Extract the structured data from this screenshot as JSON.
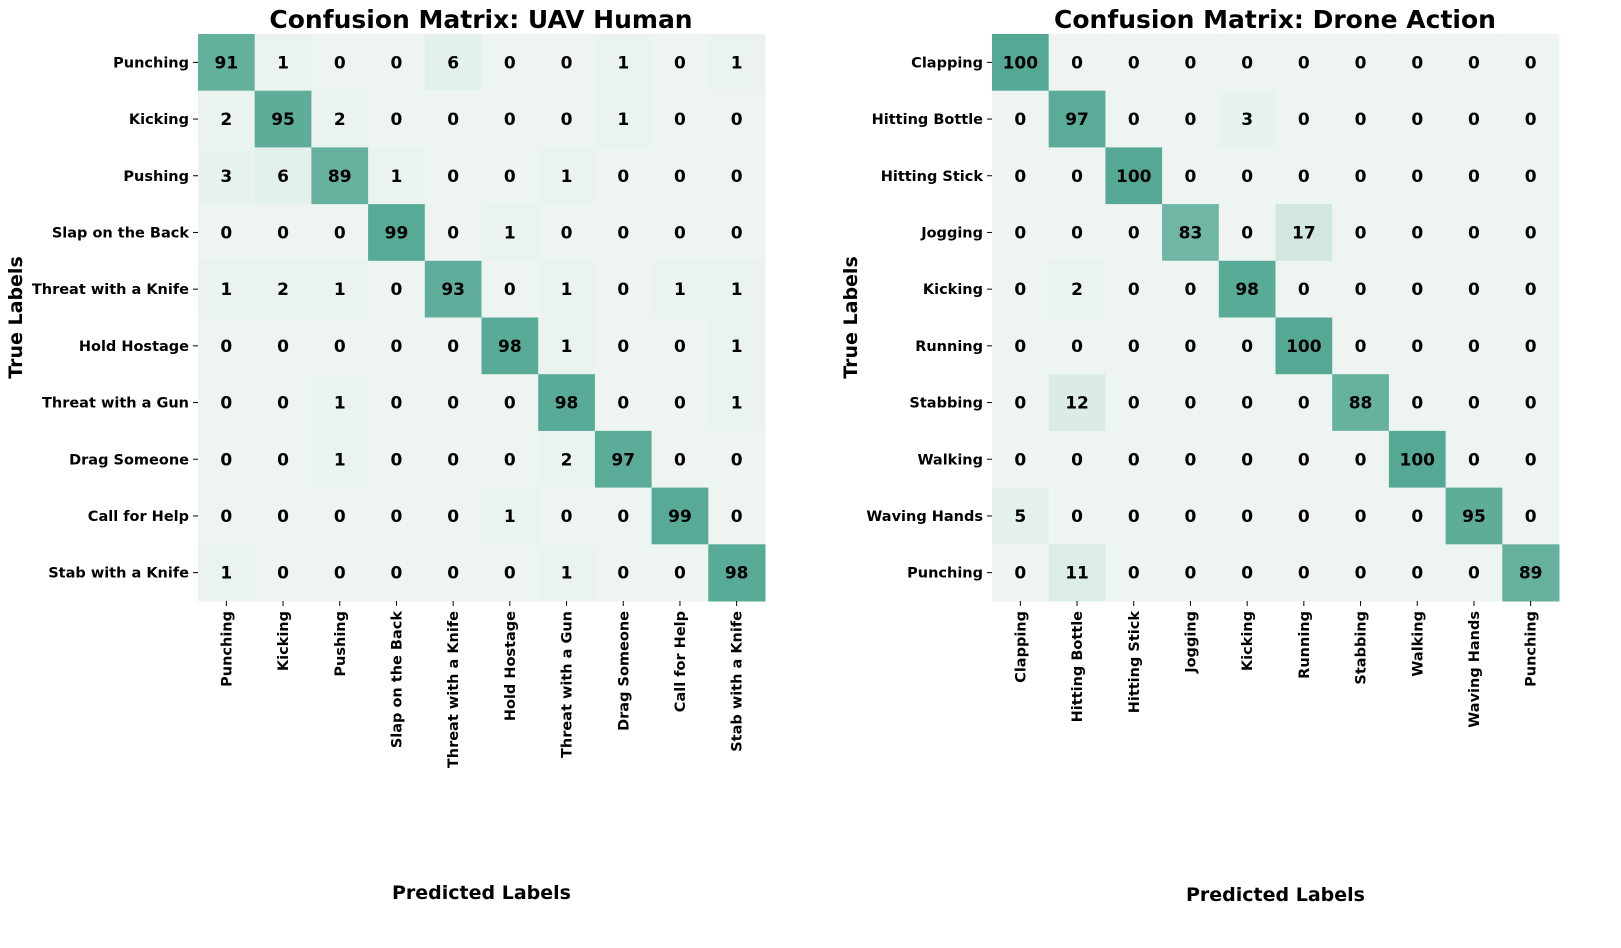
{
  "chart_data": [
    {
      "type": "heatmap",
      "title": "Confusion Matrix: UAV Human",
      "xlabel": "Predicted Labels",
      "ylabel": "True Labels",
      "labels": [
        "Punching",
        "Kicking",
        "Pushing",
        "Slap on the Back",
        "Threat with a Knife",
        "Hold Hostage",
        "Threat with a Gun",
        "Drag Someone",
        "Call for Help",
        "Stab with a Knife"
      ],
      "values": [
        [
          91,
          1,
          0,
          0,
          6,
          0,
          0,
          1,
          0,
          1
        ],
        [
          2,
          95,
          2,
          0,
          0,
          0,
          0,
          1,
          0,
          0
        ],
        [
          3,
          6,
          89,
          1,
          0,
          0,
          1,
          0,
          0,
          0
        ],
        [
          0,
          0,
          0,
          99,
          0,
          1,
          0,
          0,
          0,
          0
        ],
        [
          1,
          2,
          1,
          0,
          93,
          0,
          1,
          0,
          1,
          1
        ],
        [
          0,
          0,
          0,
          0,
          0,
          98,
          1,
          0,
          0,
          1
        ],
        [
          0,
          0,
          1,
          0,
          0,
          0,
          98,
          0,
          0,
          1
        ],
        [
          0,
          0,
          1,
          0,
          0,
          0,
          2,
          97,
          0,
          0
        ],
        [
          0,
          0,
          0,
          0,
          0,
          1,
          0,
          0,
          99,
          0
        ],
        [
          1,
          0,
          0,
          0,
          0,
          0,
          1,
          0,
          0,
          98
        ]
      ],
      "color_low": "#edf4f1",
      "color_high": "#55a994",
      "vmin": 0,
      "vmax": 100
    },
    {
      "type": "heatmap",
      "title": "Confusion Matrix: Drone Action",
      "xlabel": "Predicted Labels",
      "ylabel": "True Labels",
      "labels": [
        "Clapping",
        "Hitting Bottle",
        "Hitting Stick",
        "Jogging",
        "Kicking",
        "Running",
        "Stabbing",
        "Walking",
        "Waving Hands",
        "Punching"
      ],
      "values": [
        [
          100,
          0,
          0,
          0,
          0,
          0,
          0,
          0,
          0,
          0
        ],
        [
          0,
          97,
          0,
          0,
          3,
          0,
          0,
          0,
          0,
          0
        ],
        [
          0,
          0,
          100,
          0,
          0,
          0,
          0,
          0,
          0,
          0
        ],
        [
          0,
          0,
          0,
          83,
          0,
          17,
          0,
          0,
          0,
          0
        ],
        [
          0,
          2,
          0,
          0,
          98,
          0,
          0,
          0,
          0,
          0
        ],
        [
          0,
          0,
          0,
          0,
          0,
          100,
          0,
          0,
          0,
          0
        ],
        [
          0,
          12,
          0,
          0,
          0,
          0,
          88,
          0,
          0,
          0
        ],
        [
          0,
          0,
          0,
          0,
          0,
          0,
          0,
          100,
          0,
          0
        ],
        [
          5,
          0,
          0,
          0,
          0,
          0,
          0,
          0,
          95,
          0
        ],
        [
          0,
          11,
          0,
          0,
          0,
          0,
          0,
          0,
          0,
          89
        ]
      ],
      "color_low": "#edf4f1",
      "color_high": "#55a994",
      "vmin": 0,
      "vmax": 100
    }
  ]
}
